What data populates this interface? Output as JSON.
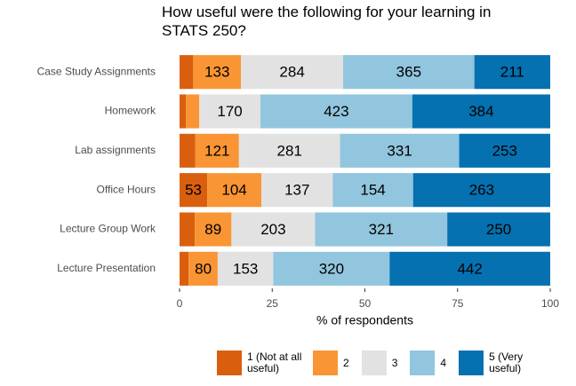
{
  "chart_data": {
    "type": "bar",
    "orientation": "horizontal",
    "stacked": "percent",
    "title": "How useful were the following for your learning in STATS 250?",
    "xlabel": "% of respondents",
    "categories": [
      "Case Study Assignments",
      "Homework",
      "Lab assignments",
      "Office Hours",
      "Lecture Group Work",
      "Lecture Presentation"
    ],
    "series": [
      {
        "name": "1 (Not at all useful)",
        "color": "#d95f0e",
        "values": [
          38,
          18,
          44,
          53,
          37,
          25
        ]
      },
      {
        "name": "2",
        "color": "#f99534",
        "values": [
          133,
          37,
          121,
          104,
          89,
          80
        ]
      },
      {
        "name": "3",
        "color": "#e2e2e2",
        "values": [
          284,
          170,
          281,
          137,
          203,
          153
        ]
      },
      {
        "name": "4",
        "color": "#92c5de",
        "values": [
          365,
          423,
          331,
          154,
          321,
          320
        ]
      },
      {
        "name": "5 (Very useful)",
        "color": "#0571b0",
        "values": [
          211,
          384,
          253,
          263,
          250,
          442
        ]
      }
    ],
    "xlim": [
      0,
      100
    ],
    "xticks": [
      0,
      25,
      50,
      75,
      100
    ],
    "grid": false,
    "legend": "bottom"
  }
}
